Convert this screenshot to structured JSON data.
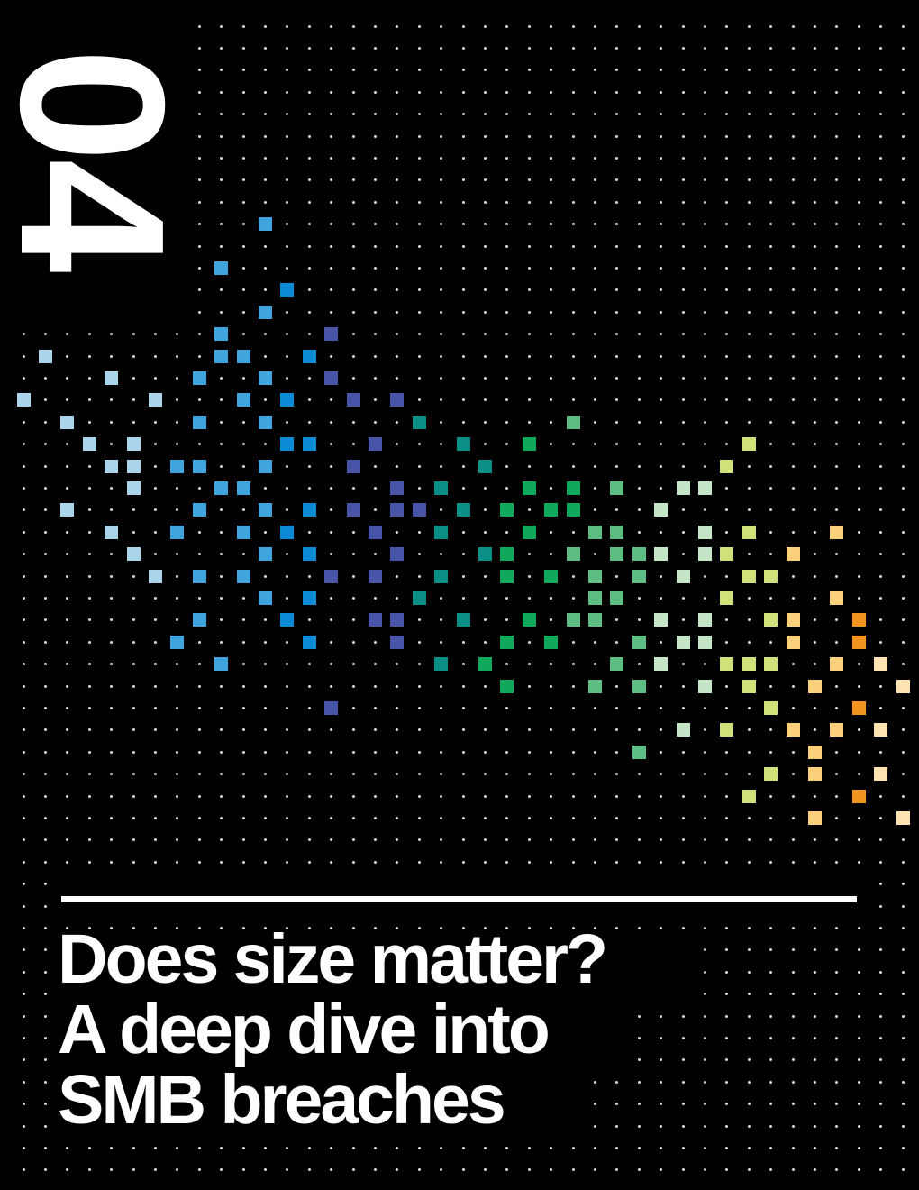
{
  "section": {
    "number": "04"
  },
  "title": {
    "lines": [
      "Does size matter?",
      "A deep dive into",
      "SMB breaches"
    ]
  },
  "colors": {
    "background": "#000000",
    "text": "#ffffff",
    "dot": "#d8d8d8",
    "palette": {
      "lb": "#aad4ec",
      "sb": "#3fa4dc",
      "db": "#0a8bd3",
      "in": "#4854a8",
      "tl": "#0a8f88",
      "gr": "#10a85a",
      "mg": "#5dbd82",
      "pg": "#c4e6c6",
      "lm": "#d2e07a",
      "yl": "#fcd07a",
      "or": "#f39320",
      "pc": "#fde3b2"
    }
  }
}
